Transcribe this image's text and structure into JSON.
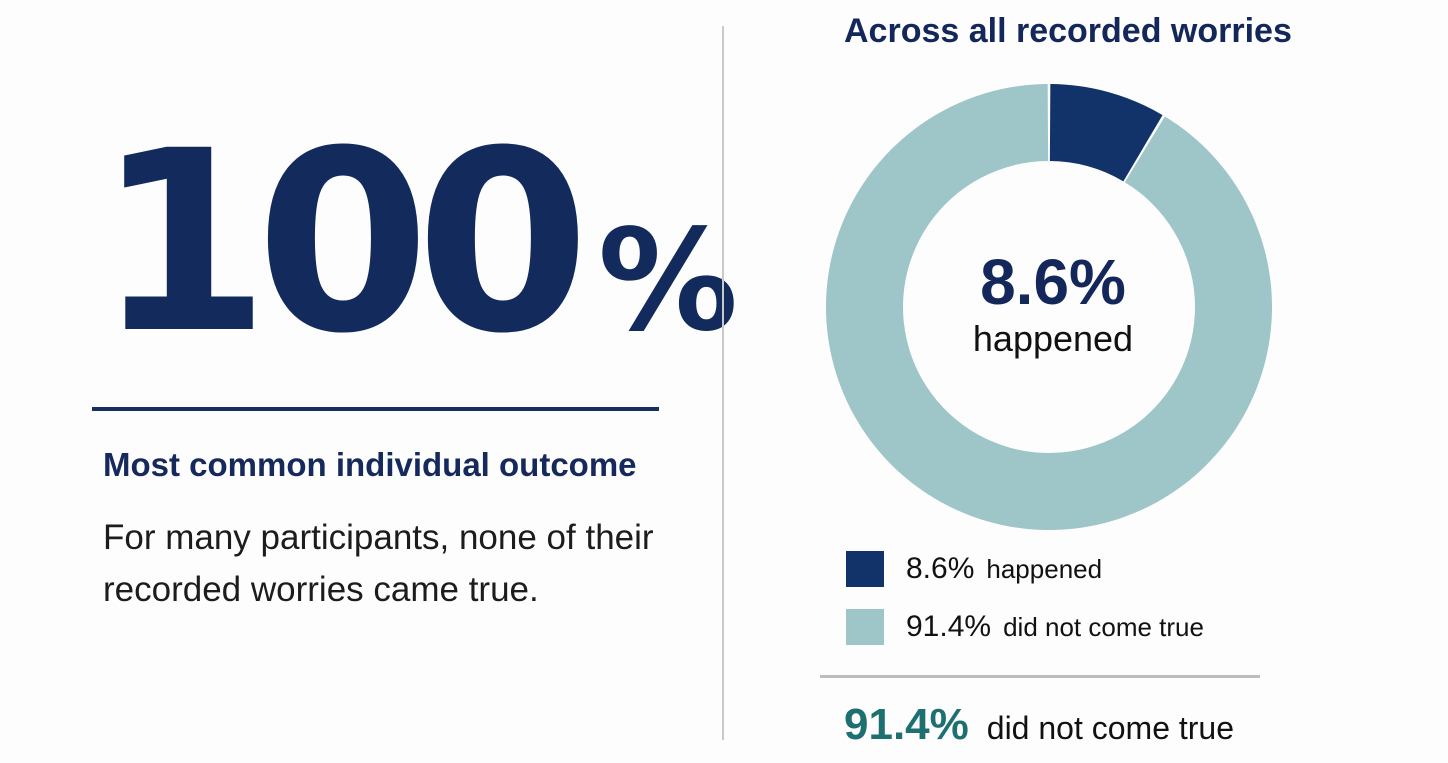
{
  "left": {
    "big_number": "100",
    "big_unit": "%",
    "subheading": "Most common individual outcome",
    "description": "For many participants, none of their recorded worries came true."
  },
  "right": {
    "center_value": "8.6%",
    "center_caption": "happened",
    "legend": [
      {
        "value": "8.6%",
        "text": "happened"
      },
      {
        "value": "91.4%",
        "text": "did not come true"
      }
    ],
    "footer_value": "91.4%",
    "footer_text": "did not come true"
  },
  "colors": {
    "navy": "#12336a",
    "teal": "#9ec5c7",
    "text_navy": "#14275a",
    "footer_teal": "#1d6f70"
  },
  "chart_data": {
    "type": "pie",
    "title": "Across all recorded worries",
    "donut": true,
    "slices": [
      {
        "label": "happened",
        "value": 8.6,
        "color": "#12336a"
      },
      {
        "label": "did not come true",
        "value": 91.4,
        "color": "#9ec5c7"
      }
    ],
    "unit": "%",
    "legend": "bottom"
  }
}
